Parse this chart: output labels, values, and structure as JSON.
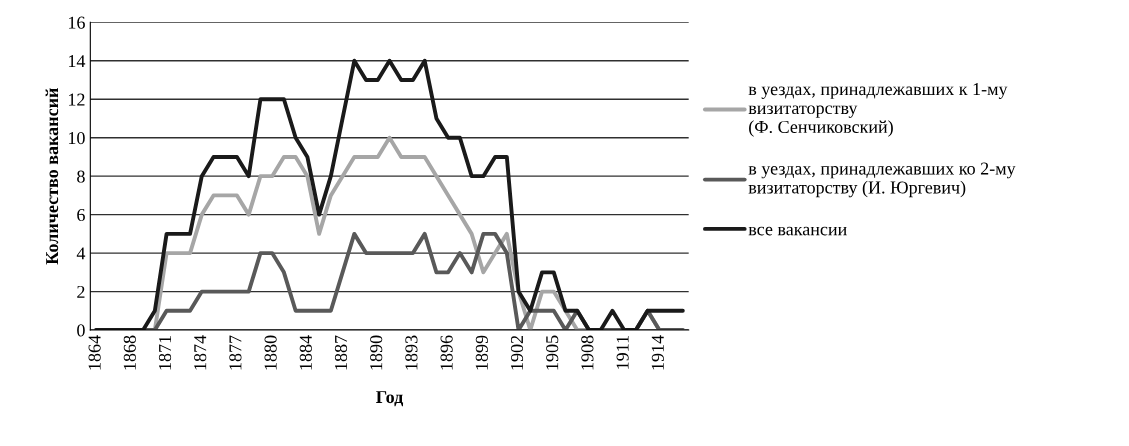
{
  "chart_data": {
    "type": "line",
    "xlabel": "Год",
    "ylabel": "Количество вакансий",
    "categories": [
      "1864",
      null,
      null,
      "1868",
      null,
      null,
      "1871",
      null,
      null,
      "1874",
      null,
      null,
      "1877",
      null,
      null,
      "1880",
      null,
      null,
      "1884",
      null,
      null,
      "1887",
      null,
      null,
      "1890",
      null,
      null,
      "1893",
      null,
      null,
      "1896",
      null,
      null,
      "1899",
      null,
      null,
      "1902",
      null,
      null,
      "1905",
      null,
      null,
      "1908",
      null,
      null,
      "1911",
      null,
      null,
      "1914",
      null,
      null
    ],
    "series": [
      {
        "name": "в уездах, принадлежавших к 1-му\nвизитаторству\n(Ф. Сенчиковский)",
        "color": "#a6a6a6",
        "values": [
          0,
          0,
          0,
          0,
          0,
          0,
          4,
          4,
          4,
          6,
          7,
          7,
          7,
          6,
          8,
          8,
          9,
          9,
          8,
          5,
          7,
          8,
          9,
          9,
          9,
          10,
          9,
          9,
          9,
          8,
          7,
          6,
          5,
          3,
          4,
          5,
          2,
          0,
          2,
          2,
          1,
          0,
          0,
          0,
          0,
          0,
          0,
          1,
          0,
          0,
          0
        ]
      },
      {
        "name": "в уездах, принадлежавших ко 2-му\nвизитаторству (И. Юргевич)",
        "color": "#595959",
        "values": [
          0,
          0,
          0,
          0,
          0,
          0,
          1,
          1,
          1,
          2,
          2,
          2,
          2,
          2,
          4,
          4,
          3,
          1,
          1,
          1,
          1,
          3,
          5,
          4,
          4,
          4,
          4,
          4,
          5,
          3,
          3,
          4,
          3,
          5,
          5,
          4,
          0,
          1,
          1,
          1,
          0,
          1,
          0,
          0,
          0,
          0,
          0,
          1,
          0,
          0,
          0
        ]
      },
      {
        "name": "все вакансии",
        "color": "#1a1a1a",
        "values": [
          0,
          0,
          0,
          0,
          0,
          1,
          5,
          5,
          5,
          8,
          9,
          9,
          9,
          8,
          12,
          12,
          12,
          10,
          9,
          6,
          8,
          11,
          14,
          13,
          13,
          14,
          13,
          13,
          14,
          11,
          10,
          10,
          8,
          8,
          9,
          9,
          2,
          1,
          3,
          3,
          1,
          1,
          0,
          0,
          1,
          0,
          0,
          1,
          1,
          1,
          1
        ]
      }
    ],
    "ylim": [
      0,
      16
    ],
    "yticks": [
      0,
      2,
      4,
      6,
      8,
      10,
      12,
      14,
      16
    ],
    "grid": "y",
    "legend": "right",
    "marker": "none",
    "line_style": "solid"
  }
}
